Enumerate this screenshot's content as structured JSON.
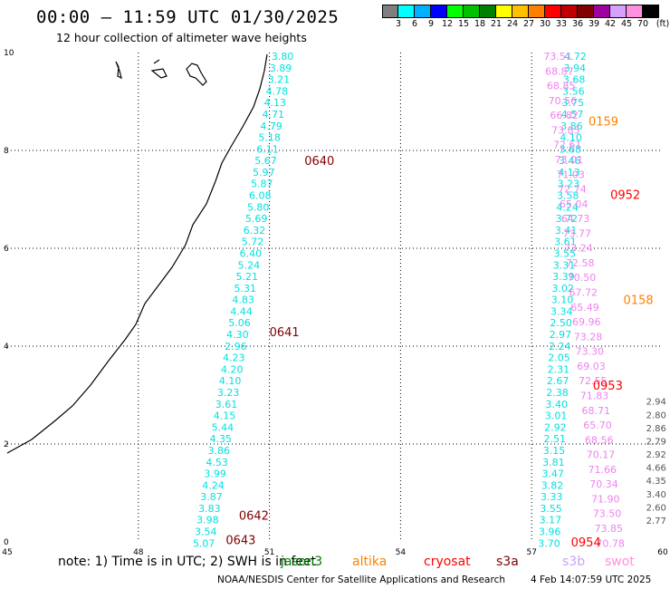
{
  "header": {
    "title": "00:00 – 11:59 UTC 01/30/2025",
    "subtitle": "12 hour collection of altimeter wave heights"
  },
  "legend_scale": {
    "ticks": [
      "3",
      "6",
      "9",
      "12",
      "15",
      "18",
      "21",
      "24",
      "27",
      "30",
      "33",
      "36",
      "39",
      "42",
      "45",
      "70",
      "(ft)"
    ],
    "colors": [
      "#7f7f7f",
      "#00ffff",
      "#00b0ff",
      "#0000ff",
      "#00ff00",
      "#00c000",
      "#008000",
      "#ffff00",
      "#ffc000",
      "#ff8000",
      "#ff0000",
      "#c00000",
      "#800000",
      "#a000a0",
      "#d7a0ff",
      "#ff90e0",
      "#000000"
    ]
  },
  "chart_data": {
    "type": "map",
    "x_axis": {
      "ticks": [
        "45",
        "48",
        "51",
        "54",
        "57",
        "60"
      ],
      "range": [
        45,
        60
      ]
    },
    "y_axis": {
      "ticks": [
        "0",
        "2",
        "4",
        "6",
        "8",
        "10"
      ],
      "range": [
        0,
        10
      ]
    },
    "grid": true,
    "annotations": [
      {
        "text": "0640",
        "x": 51.8,
        "y": 7.8,
        "color": "#800000"
      },
      {
        "text": "0641",
        "x": 51.0,
        "y": 4.3,
        "color": "#800000"
      },
      {
        "text": "0642",
        "x": 50.3,
        "y": 0.55,
        "color": "#800000"
      },
      {
        "text": "0643",
        "x": 50.0,
        "y": 0.05,
        "color": "#800000"
      },
      {
        "text": "0159",
        "x": 58.3,
        "y": 8.6,
        "color": "#ff8000"
      },
      {
        "text": "0952",
        "x": 58.8,
        "y": 7.1,
        "color": "#ff0000"
      },
      {
        "text": "0158",
        "x": 59.1,
        "y": 4.95,
        "color": "#ff8000"
      },
      {
        "text": "0953",
        "x": 58.4,
        "y": 3.2,
        "color": "#ff0000"
      },
      {
        "text": "0954",
        "x": 57.9,
        "y": 0.0,
        "color": "#ff0000"
      }
    ],
    "tracks": [
      {
        "satellite": "jason3",
        "color": "#00e0e0",
        "x_start": 51.3,
        "y_start": 10.0,
        "x_end": 49.5,
        "y_end": 0.05,
        "values": [
          "3.80",
          "3.89",
          "3.21",
          "4.78",
          "4.13",
          "4.71",
          "4.79",
          "5.18",
          "6.11",
          "5.67",
          "5.97",
          "5.87",
          "6.08",
          "5.80",
          "5.69",
          "6.32",
          "5.72",
          "6.40",
          "5.24",
          "5.21",
          "5.31",
          "4.83",
          "4.44",
          "5.06",
          "4.30",
          "2.96",
          "4.23",
          "4.20",
          "4.10",
          "3.23",
          "3.61",
          "4.15",
          "5.44",
          "4.35",
          "3.86",
          "4.53",
          "3.99",
          "4.24",
          "3.87",
          "3.83",
          "3.98",
          "3.54",
          "5.07"
        ]
      },
      {
        "satellite": "cryosat",
        "color": "#00e0e0",
        "x_start": 58.0,
        "y_start": 10.0,
        "x_end": 57.4,
        "y_end": 0.05,
        "values": [
          "4.72",
          "3.94",
          "3.68",
          "3.56",
          "3.75",
          "4.57",
          "3.86",
          "4.10",
          "3.68",
          "3.46",
          "4.13",
          "3.23",
          "3.58",
          "4.24",
          "3.72",
          "3.41",
          "3.61",
          "3.55",
          "3.31",
          "3.39",
          "3.02",
          "3.10",
          "3.34",
          "2.50",
          "2.97",
          "2.24",
          "2.05",
          "2.31",
          "2.67",
          "2.38",
          "3.40",
          "3.01",
          "2.92",
          "2.51",
          "3.15",
          "3.81",
          "3.47",
          "3.82",
          "3.33",
          "3.55",
          "3.17",
          "3.96",
          "3.70"
        ]
      },
      {
        "satellite": "swot",
        "color": "#ee82ee",
        "x_start": 57.6,
        "y_start": 10.0,
        "x_end": 58.8,
        "y_end": 0.05,
        "values": [
          "73.51",
          "68.87",
          "68.85",
          "70.56",
          "66.82",
          "73.85",
          "72.61",
          "73.01",
          "71.03",
          "72.74",
          "65.04",
          "64.73",
          "73.77",
          "73.24",
          "72.58",
          "70.50",
          "67.72",
          "65.49",
          "69.96",
          "73.28",
          "73.30",
          "69.03",
          "72.55",
          "71.83",
          "68.71",
          "65.70",
          "68.56",
          "70.17",
          "71.66",
          "70.34",
          "71.90",
          "73.50",
          "73.85",
          "70.78"
        ]
      }
    ],
    "extra_values": [
      "2.94",
      "2.80",
      "2.86",
      "2.79",
      "2.92",
      "4.66",
      "4.35",
      "3.40",
      "2.60",
      "2.77"
    ]
  },
  "footer": {
    "note": "note: 1) Time is in UTC; 2) SWH is in feet",
    "satellites": [
      {
        "name": "jason3",
        "color": "#008000"
      },
      {
        "name": "altika",
        "color": "#ff8000"
      },
      {
        "name": "cryosat",
        "color": "#ff0000"
      },
      {
        "name": "s3a",
        "color": "#800000"
      },
      {
        "name": "s3b",
        "color": "#c8a0ff"
      },
      {
        "name": "swot",
        "color": "#ff90e0"
      }
    ],
    "credit": "NOAA/NESDIS Center for Satellite Applications and Research",
    "date": "4 Feb 14:07:59 UTC 2025"
  }
}
